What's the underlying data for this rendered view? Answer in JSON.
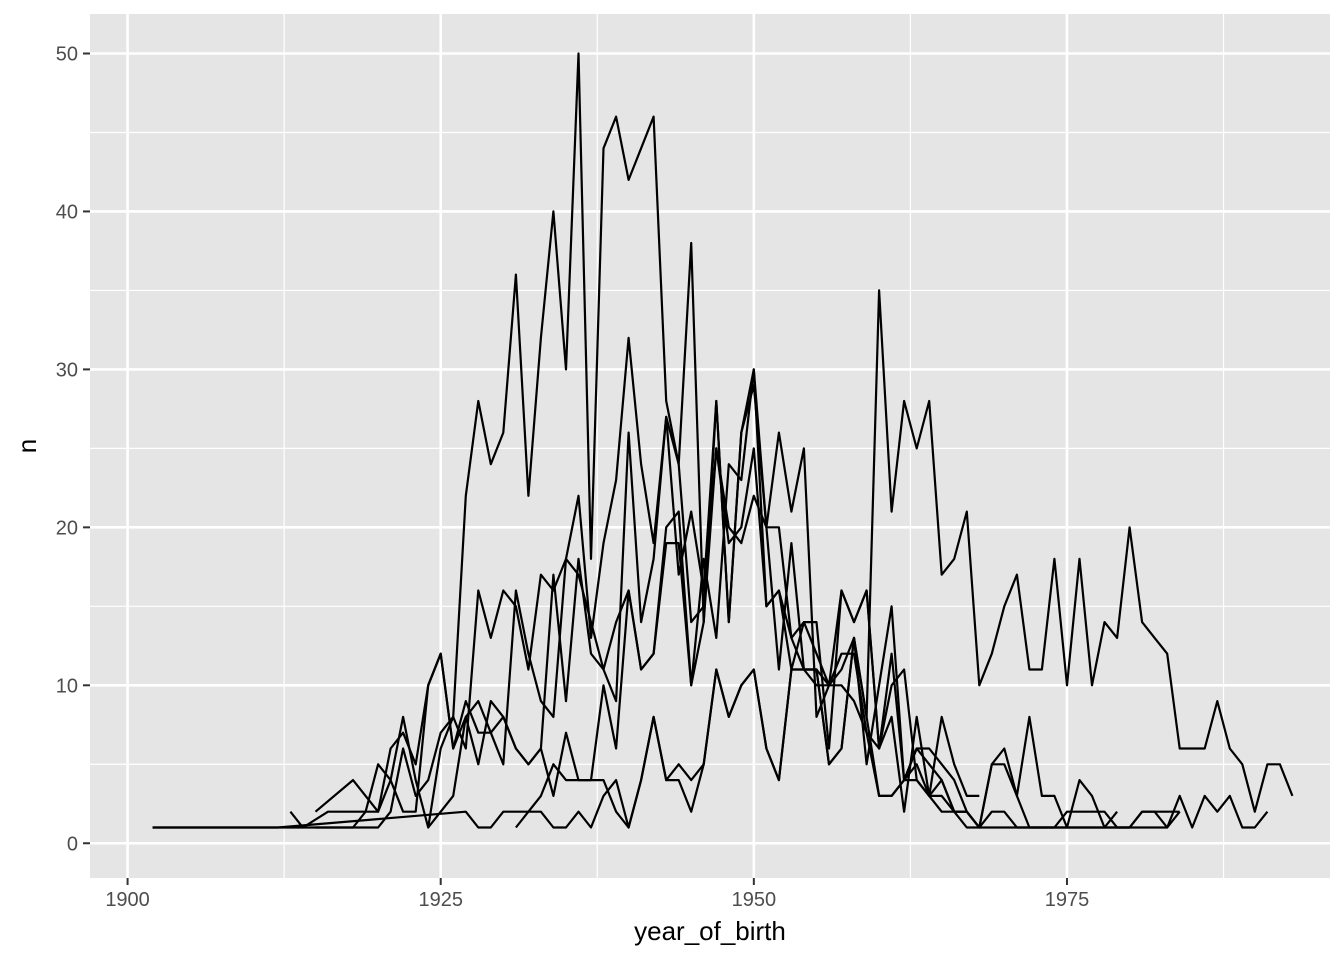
{
  "chart_data": {
    "type": "line",
    "title": "",
    "xlabel": "year_of_birth",
    "ylabel": "n",
    "xlim": [
      1897,
      1996
    ],
    "ylim": [
      -2.2,
      52.5
    ],
    "x_ticks": [
      1900,
      1925,
      1950,
      1975
    ],
    "x_tick_labels": [
      "1900",
      "1925",
      "1950",
      "1975"
    ],
    "y_ticks": [
      0,
      10,
      20,
      30,
      40,
      50
    ],
    "y_tick_labels": [
      "0",
      "10",
      "20",
      "30",
      "40",
      "50"
    ],
    "grid": true,
    "legend": "none",
    "panel_background": "#e5e5e5",
    "grid_color": "#ffffff",
    "line_color": "#000000",
    "series": [
      {
        "x": [
          1902,
          1912,
          1914,
          1916,
          1918,
          1920,
          1921,
          1922,
          1923,
          1924,
          1925,
          1926,
          1927,
          1928,
          1929,
          1930,
          1931,
          1932,
          1933,
          1934,
          1935,
          1936,
          1937,
          1938,
          1939,
          1940,
          1941,
          1942,
          1943,
          1944,
          1945,
          1946,
          1947,
          1948,
          1949,
          1950,
          1951,
          1952,
          1953,
          1954,
          1955,
          1956,
          1957,
          1958,
          1959,
          1960,
          1961,
          1962,
          1963,
          1964,
          1965,
          1966,
          1967,
          1968
        ],
        "y": [
          1,
          1,
          1,
          1,
          1,
          1,
          2,
          6,
          3,
          4,
          7,
          8,
          22,
          28,
          24,
          26,
          36,
          22,
          32,
          40,
          30,
          50,
          18,
          44,
          46,
          42,
          44,
          46,
          28,
          24,
          38,
          14,
          28,
          14,
          26,
          30,
          15,
          16,
          11,
          14,
          12,
          10,
          10,
          9,
          7,
          6,
          8,
          2,
          8,
          3,
          4,
          2,
          2,
          1
        ]
      },
      {
        "x": [
          1913,
          1914,
          1916,
          1918,
          1920,
          1921,
          1922,
          1923,
          1924,
          1925,
          1926,
          1927,
          1928,
          1929,
          1930,
          1931,
          1932,
          1933,
          1934,
          1935,
          1936,
          1937,
          1938,
          1939,
          1940,
          1941,
          1942,
          1943,
          1944,
          1945,
          1946,
          1947,
          1948,
          1949,
          1950,
          1951,
          1952,
          1953,
          1954,
          1955,
          1956,
          1957,
          1958,
          1959,
          1960,
          1961,
          1962,
          1963,
          1964,
          1965,
          1966,
          1967,
          1968
        ],
        "y": [
          2,
          1,
          2,
          2,
          2,
          4,
          8,
          4,
          1,
          6,
          8,
          6,
          16,
          13,
          16,
          15,
          11,
          17,
          16,
          18,
          22,
          13,
          19,
          23,
          32,
          24,
          19,
          27,
          24,
          14,
          15,
          25,
          20,
          19,
          22,
          20,
          20,
          13,
          11,
          11,
          10,
          12,
          12,
          7,
          3,
          3,
          4,
          5,
          3,
          8,
          5,
          3,
          3
        ]
      },
      {
        "x": [
          1915,
          1918,
          1920,
          1921,
          1922,
          1923,
          1924,
          1925,
          1926,
          1927,
          1928,
          1929,
          1930,
          1931,
          1932,
          1933,
          1934,
          1935,
          1936,
          1937,
          1938,
          1939,
          1940,
          1941,
          1942,
          1943,
          1944,
          1945,
          1946,
          1947,
          1948,
          1949,
          1950,
          1951,
          1952,
          1953,
          1954,
          1955,
          1956,
          1957,
          1958,
          1959,
          1960,
          1961,
          1962,
          1963,
          1964,
          1965,
          1966,
          1967,
          1968,
          1969,
          1970,
          1971,
          1972,
          1973,
          1974,
          1975,
          1976,
          1977,
          1978,
          1979
        ],
        "y": [
          2,
          4,
          2,
          6,
          7,
          5,
          10,
          12,
          6,
          9,
          7,
          7,
          5,
          16,
          12,
          9,
          8,
          18,
          17,
          14,
          11,
          9,
          26,
          14,
          18,
          27,
          17,
          21,
          16,
          28,
          14,
          26,
          29,
          20,
          26,
          21,
          25,
          8,
          10,
          16,
          14,
          16,
          6,
          10,
          11,
          4,
          3,
          3,
          2,
          2,
          1,
          2,
          2,
          1,
          1,
          1,
          1,
          1,
          1,
          1,
          1,
          2
        ]
      },
      {
        "x": [
          1915,
          1918,
          1919,
          1920,
          1921,
          1922,
          1923,
          1924,
          1925,
          1926,
          1927,
          1928,
          1929,
          1930,
          1931,
          1932,
          1933,
          1934,
          1935,
          1936,
          1937,
          1938,
          1939,
          1940,
          1941,
          1942,
          1943,
          1944,
          1945,
          1946,
          1947,
          1948,
          1949,
          1950,
          1951,
          1952,
          1953,
          1954,
          1955,
          1956,
          1957,
          1958,
          1959,
          1960,
          1961,
          1962,
          1963,
          1964,
          1965,
          1966,
          1967,
          1968,
          1969,
          1970,
          1971,
          1972,
          1973,
          1974,
          1975,
          1976,
          1977,
          1978,
          1979,
          1980,
          1981,
          1982,
          1983,
          1984
        ],
        "y": [
          1,
          1,
          2,
          5,
          4,
          2,
          2,
          10,
          12,
          6,
          8,
          5,
          9,
          8,
          6,
          5,
          6,
          17,
          9,
          18,
          12,
          11,
          14,
          16,
          11,
          12,
          20,
          21,
          10,
          18,
          13,
          24,
          23,
          30,
          20,
          11,
          19,
          11,
          10,
          10,
          11,
          13,
          5,
          10,
          15,
          4,
          6,
          5,
          4,
          2,
          1,
          1,
          5,
          6,
          3,
          8,
          3,
          3,
          1,
          4,
          3,
          1,
          1,
          1,
          2,
          2,
          2,
          2
        ]
      },
      {
        "x": [
          1924,
          1925,
          1926,
          1927,
          1928,
          1929,
          1930,
          1931,
          1932,
          1933,
          1934,
          1935,
          1936,
          1937,
          1938,
          1939,
          1940,
          1941,
          1942,
          1943,
          1944,
          1945,
          1946,
          1947,
          1948,
          1949,
          1950,
          1951,
          1952,
          1953,
          1954,
          1955,
          1956,
          1957,
          1958,
          1959,
          1960,
          1961,
          1962,
          1963,
          1964,
          1965,
          1966,
          1967,
          1968,
          1969,
          1970,
          1971,
          1972,
          1973,
          1974,
          1975,
          1976,
          1977,
          1978,
          1979,
          1980,
          1981,
          1982,
          1983,
          1984,
          1985,
          1986,
          1987,
          1988,
          1989,
          1990,
          1991,
          1992,
          1993
        ],
        "y": [
          1,
          2,
          3,
          8,
          9,
          7,
          8,
          6,
          5,
          6,
          3,
          7,
          4,
          4,
          4,
          2,
          1,
          4,
          8,
          4,
          5,
          4,
          5,
          11,
          8,
          10,
          11,
          6,
          4,
          11,
          11,
          11,
          5,
          6,
          13,
          8,
          35,
          21,
          28,
          25,
          28,
          17,
          18,
          21,
          10,
          12,
          15,
          17,
          11,
          11,
          18,
          10,
          18,
          10,
          14,
          13,
          20,
          14,
          13,
          12,
          6,
          6,
          6,
          9,
          6,
          5,
          2,
          5,
          5,
          3
        ]
      },
      {
        "x": [
          1902,
          1912,
          1927,
          1928,
          1929,
          1930,
          1931,
          1932,
          1933,
          1934,
          1935,
          1936,
          1937,
          1938,
          1939,
          1940,
          1941,
          1942,
          1943,
          1944,
          1945,
          1946,
          1947,
          1948,
          1949,
          1950,
          1951,
          1952,
          1953,
          1954,
          1955,
          1956,
          1957,
          1958,
          1959,
          1960,
          1961,
          1962,
          1963,
          1964,
          1965,
          1966,
          1967,
          1968,
          1969,
          1970,
          1971,
          1972,
          1973,
          1974,
          1975,
          1976,
          1977,
          1978,
          1979,
          1980,
          1981,
          1982,
          1983,
          1984,
          1985,
          1986,
          1987,
          1988,
          1989,
          1990,
          1991
        ],
        "y": [
          1,
          1,
          2,
          1,
          1,
          2,
          2,
          2,
          3,
          5,
          4,
          4,
          4,
          10,
          6,
          16,
          11,
          12,
          19,
          19,
          10,
          14,
          25,
          19,
          20,
          25,
          15,
          16,
          13,
          14,
          14,
          6,
          16,
          14,
          16,
          6,
          12,
          4,
          6,
          6,
          5,
          4,
          2,
          1,
          5,
          5,
          3,
          1,
          1,
          1,
          2,
          2,
          2,
          2,
          1,
          1,
          1,
          1,
          1,
          3,
          1,
          3,
          2,
          3,
          1,
          1,
          2
        ]
      },
      {
        "x": [
          1931,
          1932,
          1933,
          1934,
          1935,
          1936,
          1937,
          1938,
          1939,
          1940,
          1941,
          1942,
          1943,
          1944,
          1945,
          1946,
          1947,
          1948,
          1949,
          1950,
          1951,
          1952,
          1953,
          1954,
          1955,
          1956,
          1957,
          1958,
          1959,
          1960,
          1961,
          1962,
          1963,
          1964,
          1965,
          1966,
          1967,
          1968,
          1969,
          1970,
          1971,
          1972,
          1973,
          1974,
          1975,
          1976,
          1977,
          1978,
          1979,
          1980,
          1981,
          1982,
          1983,
          1984
        ],
        "y": [
          1,
          2,
          2,
          1,
          1,
          2,
          1,
          3,
          4,
          1,
          4,
          8,
          4,
          4,
          2,
          5,
          11,
          8,
          10,
          11,
          6,
          4,
          11,
          11,
          11,
          5,
          6,
          13,
          8,
          3,
          3,
          4,
          4,
          3,
          2,
          2,
          2,
          1,
          1,
          1,
          1,
          1,
          1,
          1,
          1,
          1,
          1,
          1,
          1,
          1,
          2,
          2,
          1,
          2
        ]
      }
    ]
  }
}
